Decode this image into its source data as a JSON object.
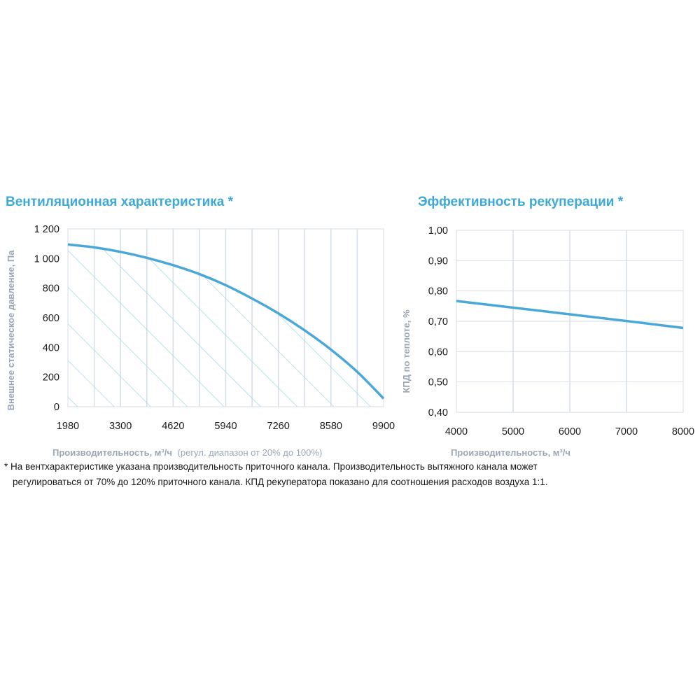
{
  "chart_data": [
    {
      "type": "line",
      "title": "Вентиляционная характеристика *",
      "xlabel": "Производительность, м³/ч",
      "xlabel_note": "(регул. диапазон от 20% до 100%)",
      "ylabel": "Внешнее статическое давление, Па",
      "x_ticks": [
        1980,
        3300,
        4620,
        5940,
        7260,
        8580,
        9900
      ],
      "x_tick_labels": [
        "1980",
        "3300",
        "4620",
        "5940",
        "7260",
        "8580",
        "9900"
      ],
      "y_ticks": [
        0,
        200,
        400,
        600,
        800,
        1000,
        1200
      ],
      "y_tick_labels": [
        "0",
        "200",
        "400",
        "600",
        "800",
        "1 000",
        "1 200"
      ],
      "xlim": [
        1980,
        9900
      ],
      "ylim": [
        0,
        1200
      ],
      "grid": "vertical",
      "hatched_area_under_curve": true,
      "series": [
        {
          "x": [
            1980,
            2650,
            3300,
            3960,
            4620,
            5280,
            5940,
            6600,
            7260,
            7920,
            8580,
            9240,
            9900
          ],
          "y": [
            1095,
            1075,
            1045,
            1005,
            955,
            895,
            820,
            730,
            630,
            515,
            385,
            235,
            55
          ]
        }
      ]
    },
    {
      "type": "line",
      "title": "Эффективность рекуперации *",
      "xlabel": "Производительность, м³/ч",
      "ylabel": "КПД по теплоте, %",
      "x_ticks": [
        4000,
        5000,
        6000,
        7000,
        8000
      ],
      "x_tick_labels": [
        "4000",
        "5000",
        "6000",
        "7000",
        "8000"
      ],
      "y_ticks": [
        0.4,
        0.5,
        0.6,
        0.7,
        0.8,
        0.9,
        1.0
      ],
      "y_tick_labels": [
        "0,40",
        "0,50",
        "0,60",
        "0,70",
        "0,80",
        "0,90",
        "1,00"
      ],
      "xlim": [
        4000,
        8000
      ],
      "ylim": [
        0.4,
        1.0
      ],
      "grid": "both",
      "series": [
        {
          "x": [
            4000,
            5000,
            6000,
            7000,
            8000
          ],
          "y": [
            0.767,
            0.745,
            0.723,
            0.701,
            0.678
          ]
        }
      ]
    }
  ],
  "footnote": {
    "line1": "* На вентхарактеристике указана производительность приточного канала. Производительность вытяжного канала может",
    "line2": "регулироваться от 70% до 120% приточного канала. КПД рекуператора показано для соотношения расходов воздуха 1:1."
  },
  "colors": {
    "accent": "#3fa9d6",
    "line": "#4aa8d8",
    "grid": "#d5dde6",
    "hatch": "#a8dde0",
    "axis_label": "#9aa6b3"
  }
}
